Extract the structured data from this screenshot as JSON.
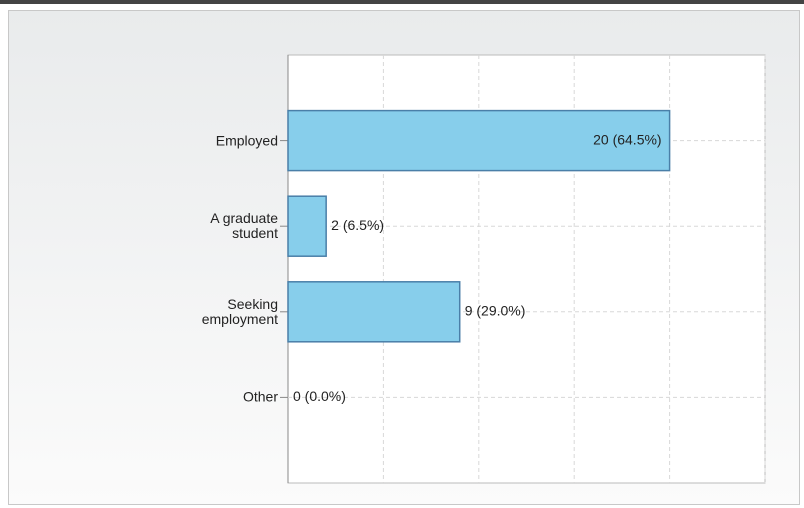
{
  "chart_data": {
    "type": "bar",
    "orientation": "horizontal",
    "categories": [
      "Employed",
      "A graduate student",
      "Seeking employment",
      "Other"
    ],
    "values": [
      20,
      2,
      9,
      0
    ],
    "value_labels": [
      "20 (64.5%)",
      "2 (6.5%)",
      "9 (29.0%)",
      "0 (0.0%)"
    ],
    "color": "#87ceeb",
    "xlim": [
      0,
      25
    ],
    "xticks": [
      0,
      5,
      10,
      15,
      20,
      25
    ],
    "grid": true
  }
}
